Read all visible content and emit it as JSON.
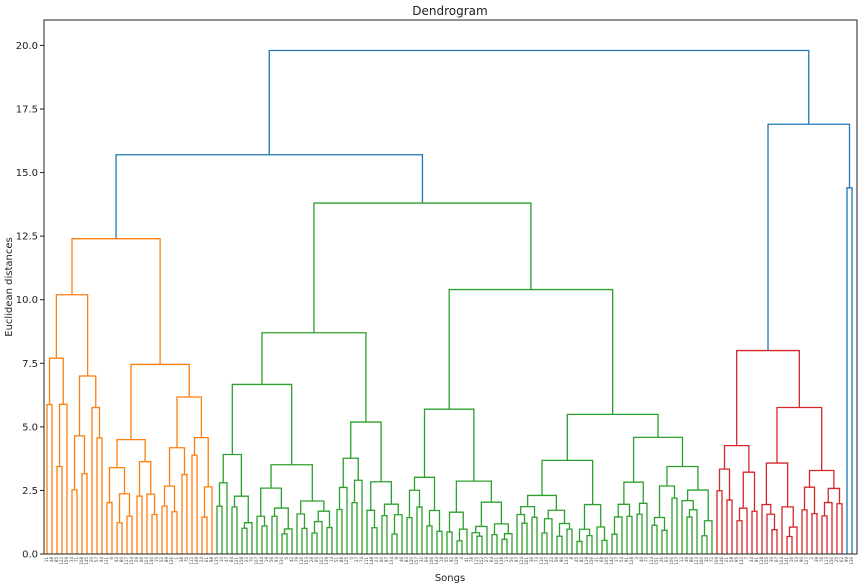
{
  "chart_data": {
    "type": "dendrogram",
    "title": "Dendrogram",
    "xlabel": "Songs",
    "ylabel": "Euclidean distances",
    "ylim": [
      0,
      21
    ],
    "yticks": [
      0.0,
      2.5,
      5.0,
      7.5,
      10.0,
      12.5,
      15.0,
      17.5,
      20.0
    ],
    "ytick_labels": [
      "0.0",
      "2.5",
      "5.0",
      "7.5",
      "10.0",
      "12.5",
      "15.0",
      "17.5",
      "20.0"
    ],
    "grid": false,
    "colors": {
      "orange": "#ff7f0e",
      "green": "#2ca02c",
      "red": "#d62728",
      "blue": "#1f77b4"
    },
    "cluster_heights": {
      "root": 19.8,
      "left_main": 15.7,
      "orange_top": 12.4,
      "green_top": 13.8,
      "right_main": 16.9,
      "red_top": 8.0,
      "far_right": 14.4
    },
    "clusters": [
      {
        "name": "orange",
        "color": "#ff7f0e",
        "leaf_count": 34,
        "top_height": 12.4
      },
      {
        "name": "green",
        "color": "#2ca02c",
        "leaf_count": 100,
        "top_height": 13.8
      },
      {
        "name": "red",
        "color": "#d62728",
        "leaf_count": 26,
        "top_height": 8.0
      },
      {
        "name": "singletons",
        "color": "#1f77b4",
        "leaf_count": 2,
        "top_height": 14.4
      }
    ]
  }
}
